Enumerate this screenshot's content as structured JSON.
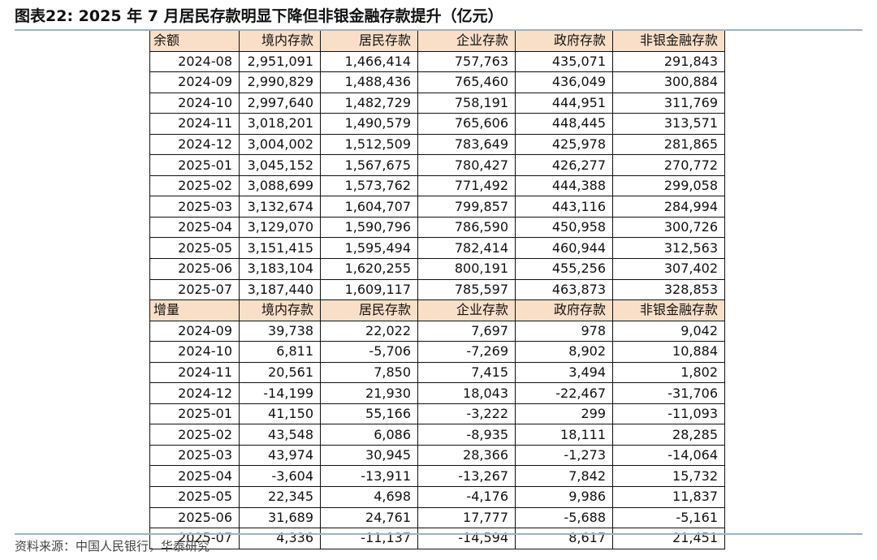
{
  "title": "图表22:  2025 年 7 月居民存款明显下降但非银金融存款提升（亿元）",
  "source": "资料来源：中国人民银行，华泰研究",
  "columns": [
    "境内存款",
    "居民存款",
    "企业存款",
    "政府存款",
    "非银金融存款"
  ],
  "balance": {
    "label": "余额",
    "rows": [
      {
        "date": "2024-08",
        "values": [
          "2,951,091",
          "1,466,414",
          "757,763",
          "435,071",
          "291,843"
        ]
      },
      {
        "date": "2024-09",
        "values": [
          "2,990,829",
          "1,488,436",
          "765,460",
          "436,049",
          "300,884"
        ]
      },
      {
        "date": "2024-10",
        "values": [
          "2,997,640",
          "1,482,729",
          "758,191",
          "444,951",
          "311,769"
        ]
      },
      {
        "date": "2024-11",
        "values": [
          "3,018,201",
          "1,490,579",
          "765,606",
          "448,445",
          "313,571"
        ]
      },
      {
        "date": "2024-12",
        "values": [
          "3,004,002",
          "1,512,509",
          "783,649",
          "425,978",
          "281,865"
        ]
      },
      {
        "date": "2025-01",
        "values": [
          "3,045,152",
          "1,567,675",
          "780,427",
          "426,277",
          "270,772"
        ]
      },
      {
        "date": "2025-02",
        "values": [
          "3,088,699",
          "1,573,762",
          "771,492",
          "444,388",
          "299,058"
        ]
      },
      {
        "date": "2025-03",
        "values": [
          "3,132,674",
          "1,604,707",
          "799,857",
          "443,116",
          "284,994"
        ]
      },
      {
        "date": "2025-04",
        "values": [
          "3,129,070",
          "1,590,796",
          "786,590",
          "450,958",
          "300,726"
        ]
      },
      {
        "date": "2025-05",
        "values": [
          "3,151,415",
          "1,595,494",
          "782,414",
          "460,944",
          "312,563"
        ]
      },
      {
        "date": "2025-06",
        "values": [
          "3,183,104",
          "1,620,255",
          "800,191",
          "455,256",
          "307,402"
        ]
      },
      {
        "date": "2025-07",
        "values": [
          "3,187,440",
          "1,609,117",
          "785,597",
          "463,873",
          "328,853"
        ]
      }
    ]
  },
  "increment": {
    "label": "增量",
    "rows": [
      {
        "date": "2024-09",
        "values": [
          "39,738",
          "22,022",
          "7,697",
          "978",
          "9,042"
        ]
      },
      {
        "date": "2024-10",
        "values": [
          "6,811",
          "-5,706",
          "-7,269",
          "8,902",
          "10,884"
        ]
      },
      {
        "date": "2024-11",
        "values": [
          "20,561",
          "7,850",
          "7,415",
          "3,494",
          "1,802"
        ]
      },
      {
        "date": "2024-12",
        "values": [
          "-14,199",
          "21,930",
          "18,043",
          "-22,467",
          "-31,706"
        ]
      },
      {
        "date": "2025-01",
        "values": [
          "41,150",
          "55,166",
          "-3,222",
          "299",
          "-11,093"
        ]
      },
      {
        "date": "2025-02",
        "values": [
          "43,548",
          "6,086",
          "-8,935",
          "18,111",
          "28,285"
        ]
      },
      {
        "date": "2025-03",
        "values": [
          "43,974",
          "30,945",
          "28,366",
          "-1,273",
          "-14,064"
        ]
      },
      {
        "date": "2025-04",
        "values": [
          "-3,604",
          "-13,911",
          "-13,267",
          "7,842",
          "15,732"
        ]
      },
      {
        "date": "2025-05",
        "values": [
          "22,345",
          "4,698",
          "-4,176",
          "9,986",
          "11,837"
        ]
      },
      {
        "date": "2025-06",
        "values": [
          "31,689",
          "24,761",
          "17,777",
          "-5,688",
          "-5,161"
        ]
      },
      {
        "date": "2025-07",
        "values": [
          "4,336",
          "-11,137",
          "-14,594",
          "8,617",
          "21,451"
        ]
      }
    ]
  }
}
